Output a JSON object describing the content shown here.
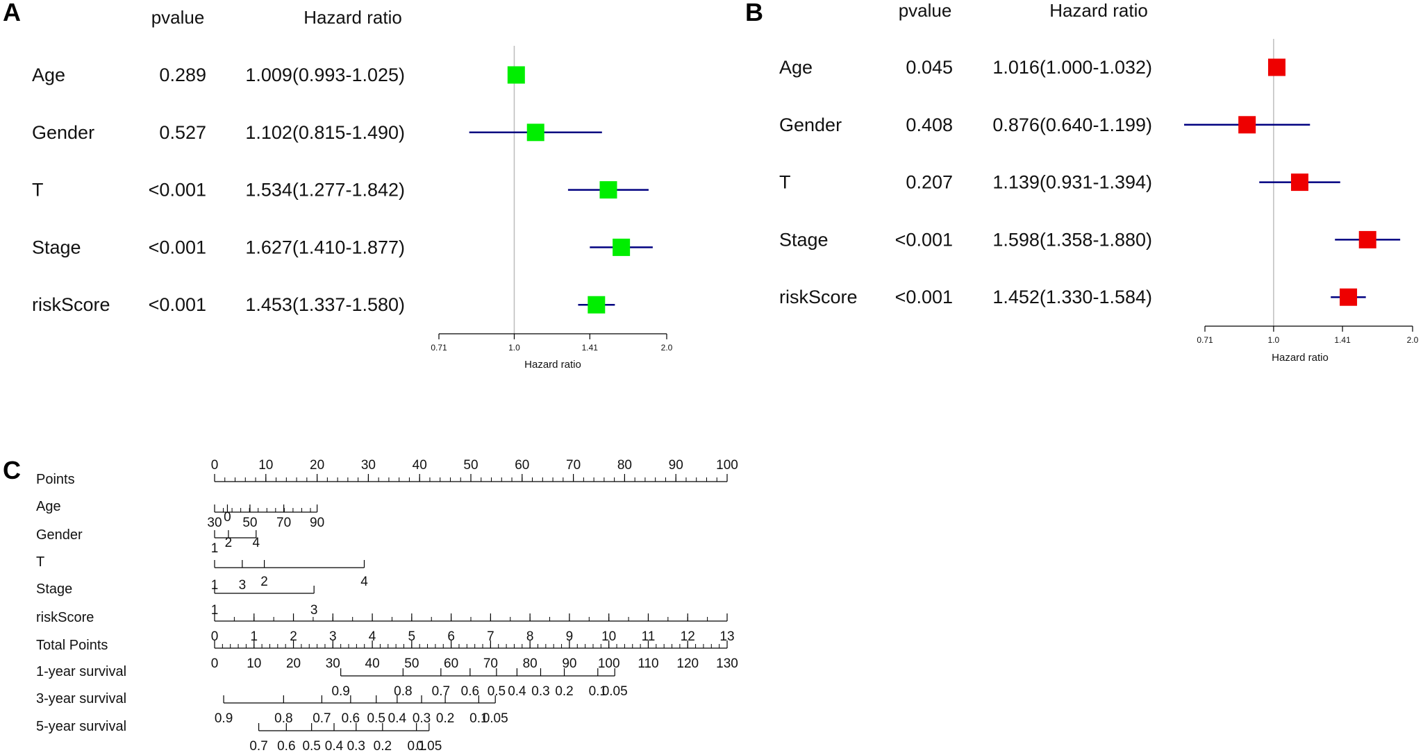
{
  "chart_data": [
    {
      "type": "forest",
      "panel": "A",
      "col_pvalue": "pvalue",
      "col_hr": "Hazard ratio",
      "xlabel": "Hazard ratio",
      "xscale": "log",
      "xlim": [
        0.71,
        2.0
      ],
      "ticks": [
        0.71,
        1.0,
        1.41,
        2.0
      ],
      "tick_labels": [
        "0.71",
        "1.0",
        "1.41",
        "2.0"
      ],
      "ref_line": 1.0,
      "marker_color": "#00ee00",
      "line_color": "#000080",
      "rows": [
        {
          "label": "Age",
          "pvalue": "0.289",
          "hr_text": "1.009(0.993-1.025)",
          "hr": 1.009,
          "lo": 0.993,
          "hi": 1.025
        },
        {
          "label": "Gender",
          "pvalue": "0.527",
          "hr_text": "1.102(0.815-1.490)",
          "hr": 1.102,
          "lo": 0.815,
          "hi": 1.49
        },
        {
          "label": "T",
          "pvalue": "<0.001",
          "hr_text": "1.534(1.277-1.842)",
          "hr": 1.534,
          "lo": 1.277,
          "hi": 1.842
        },
        {
          "label": "Stage",
          "pvalue": "<0.001",
          "hr_text": "1.627(1.410-1.877)",
          "hr": 1.627,
          "lo": 1.41,
          "hi": 1.877
        },
        {
          "label": "riskScore",
          "pvalue": "<0.001",
          "hr_text": "1.453(1.337-1.580)",
          "hr": 1.453,
          "lo": 1.337,
          "hi": 1.58
        }
      ]
    },
    {
      "type": "forest",
      "panel": "B",
      "col_pvalue": "pvalue",
      "col_hr": "Hazard ratio",
      "xlabel": "Hazard ratio",
      "xscale": "log",
      "xlim": [
        0.71,
        2.0
      ],
      "ticks": [
        0.71,
        1.0,
        1.41,
        2.0
      ],
      "tick_labels": [
        "0.71",
        "1.0",
        "1.41",
        "2.0"
      ],
      "ref_line": 1.0,
      "marker_color": "#ee0000",
      "line_color": "#000080",
      "rows": [
        {
          "label": "Age",
          "pvalue": "0.045",
          "hr_text": "1.016(1.000-1.032)",
          "hr": 1.016,
          "lo": 1.0,
          "hi": 1.032
        },
        {
          "label": "Gender",
          "pvalue": "0.408",
          "hr_text": "0.876(0.640-1.199)",
          "hr": 0.876,
          "lo": 0.64,
          "hi": 1.199
        },
        {
          "label": "T",
          "pvalue": "0.207",
          "hr_text": "1.139(0.931-1.394)",
          "hr": 1.139,
          "lo": 0.931,
          "hi": 1.394
        },
        {
          "label": "Stage",
          "pvalue": "<0.001",
          "hr_text": "1.598(1.358-1.880)",
          "hr": 1.598,
          "lo": 1.358,
          "hi": 1.88
        },
        {
          "label": "riskScore",
          "pvalue": "<0.001",
          "hr_text": "1.452(1.330-1.584)",
          "hr": 1.452,
          "lo": 1.33,
          "hi": 1.584
        }
      ]
    },
    {
      "type": "nomogram",
      "panel": "C",
      "rows": [
        {
          "label": "Points",
          "side": "above",
          "ticks": [
            {
              "v": 0,
              "t": "0"
            },
            {
              "v": 10,
              "t": "10"
            },
            {
              "v": 20,
              "t": "20"
            },
            {
              "v": 30,
              "t": "30"
            },
            {
              "v": 40,
              "t": "40"
            },
            {
              "v": 50,
              "t": "50"
            },
            {
              "v": 60,
              "t": "60"
            },
            {
              "v": 70,
              "t": "70"
            },
            {
              "v": 80,
              "t": "80"
            },
            {
              "v": 90,
              "t": "90"
            },
            {
              "v": 100,
              "t": "100"
            }
          ],
          "minor": {
            "from": 0,
            "to": 100,
            "step": 2
          }
        },
        {
          "label": "Age",
          "side": "below",
          "ticks": [
            {
              "v": 0,
              "t": "30"
            },
            {
              "v": 2.5,
              "t": "0",
              "level": 1
            },
            {
              "v": 6.9,
              "t": "50"
            },
            {
              "v": 13.5,
              "t": "70"
            },
            {
              "v": 20,
              "t": "90"
            }
          ],
          "minor": {
            "from": 0,
            "to": 20,
            "step": 1.7
          }
        },
        {
          "label": "Gender",
          "side": "above",
          "ticks": [
            {
              "v": 0,
              "t": "1"
            },
            {
              "v": 2.7,
              "t": "2"
            },
            {
              "v": 8.1,
              "t": "4"
            }
          ]
        },
        {
          "label": "T",
          "side": "below",
          "ticks": [
            {
              "v": 0,
              "t": "1"
            },
            {
              "v": 5.4,
              "t": "3"
            },
            {
              "v": 9.7,
              "t": "2",
              "level": 1
            },
            {
              "v": 29.2,
              "t": "4",
              "level": 1
            }
          ]
        },
        {
          "label": "Stage",
          "side": "below",
          "ticks": [
            {
              "v": 0,
              "t": "1"
            },
            {
              "v": 19.4,
              "t": "3"
            }
          ]
        },
        {
          "label": "riskScore",
          "side": "below",
          "ticks": [
            {
              "v": 0,
              "t": "0"
            },
            {
              "v": 1,
              "t": "1"
            },
            {
              "v": 2,
              "t": "2"
            },
            {
              "v": 3,
              "t": "3"
            },
            {
              "v": 4,
              "t": "4"
            },
            {
              "v": 5,
              "t": "5"
            },
            {
              "v": 6,
              "t": "6"
            },
            {
              "v": 7,
              "t": "7"
            },
            {
              "v": 8,
              "t": "8"
            },
            {
              "v": 9,
              "t": "9"
            },
            {
              "v": 10,
              "t": "10"
            },
            {
              "v": 11,
              "t": "11"
            },
            {
              "v": 12,
              "t": "12"
            },
            {
              "v": 13,
              "t": "13"
            }
          ],
          "vmin": 0,
          "vmax": 13,
          "minor": {
            "from": 0,
            "to": 13,
            "step": 0.5
          }
        },
        {
          "label": "Total Points",
          "side": "below",
          "ticks": [
            {
              "v": 0,
              "t": "0"
            },
            {
              "v": 10,
              "t": "10"
            },
            {
              "v": 20,
              "t": "20"
            },
            {
              "v": 30,
              "t": "30"
            },
            {
              "v": 40,
              "t": "40"
            },
            {
              "v": 50,
              "t": "50"
            },
            {
              "v": 60,
              "t": "60"
            },
            {
              "v": 70,
              "t": "70"
            },
            {
              "v": 80,
              "t": "80"
            },
            {
              "v": 90,
              "t": "90"
            },
            {
              "v": 100,
              "t": "100"
            },
            {
              "v": 110,
              "t": "110"
            },
            {
              "v": 120,
              "t": "120"
            },
            {
              "v": 130,
              "t": "130"
            }
          ],
          "vmin": 0,
          "vmax": 130,
          "minor": {
            "from": 0,
            "to": 130,
            "step": 2
          }
        },
        {
          "label": "1-year survival",
          "side": "below",
          "ticks": [
            {
              "v": 32,
              "t": "0.9"
            },
            {
              "v": 47.8,
              "t": "0.8"
            },
            {
              "v": 57.4,
              "t": "0.7"
            },
            {
              "v": 64.8,
              "t": "0.6"
            },
            {
              "v": 71.5,
              "t": "0.5"
            },
            {
              "v": 76.7,
              "t": "0.4"
            },
            {
              "v": 82.7,
              "t": "0.3"
            },
            {
              "v": 88.7,
              "t": "0.2"
            },
            {
              "v": 97.2,
              "t": "0.1"
            },
            {
              "v": 101.5,
              "t": "0.05"
            }
          ],
          "vmin": 0,
          "vmax": 130
        },
        {
          "label": "3-year survival",
          "side": "below",
          "ticks": [
            {
              "v": 2.3,
              "t": "0.9"
            },
            {
              "v": 17.5,
              "t": "0.8"
            },
            {
              "v": 27.2,
              "t": "0.7"
            },
            {
              "v": 34.5,
              "t": "0.6"
            },
            {
              "v": 41,
              "t": "0.5"
            },
            {
              "v": 46.3,
              "t": "0.4"
            },
            {
              "v": 52.5,
              "t": "0.3"
            },
            {
              "v": 58.5,
              "t": "0.2"
            },
            {
              "v": 67,
              "t": "0.1"
            },
            {
              "v": 71.2,
              "t": "0.05"
            }
          ],
          "vmin": 0,
          "vmax": 130
        },
        {
          "label": "5-year survival",
          "side": "below",
          "ticks": [
            {
              "v": 11.2,
              "t": "0.7"
            },
            {
              "v": 18.2,
              "t": "0.6"
            },
            {
              "v": 24.6,
              "t": "0.5"
            },
            {
              "v": 30.3,
              "t": "0.4"
            },
            {
              "v": 35.9,
              "t": "0.3"
            },
            {
              "v": 42.6,
              "t": "0.2"
            },
            {
              "v": 51.2,
              "t": "0.1"
            },
            {
              "v": 54.4,
              "t": "0.05"
            }
          ],
          "vmin": 0,
          "vmax": 130
        }
      ]
    }
  ]
}
